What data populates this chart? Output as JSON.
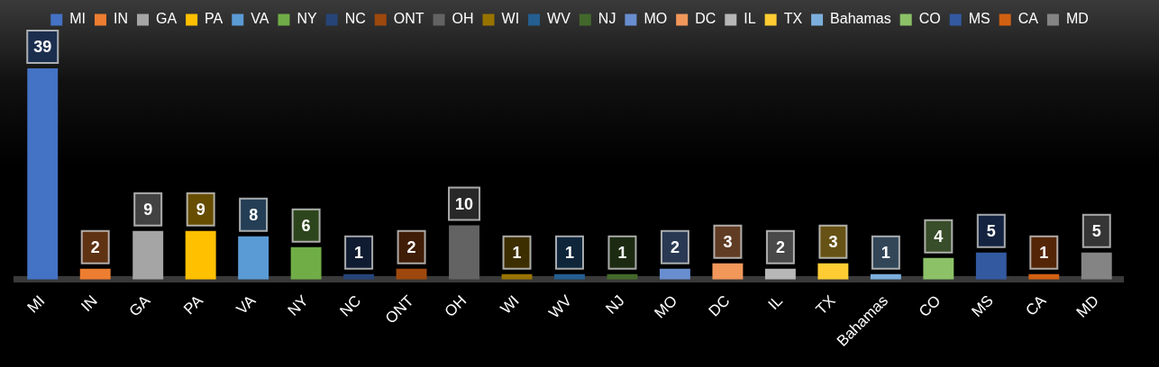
{
  "chart_data": {
    "type": "bar",
    "categories": [
      "MI",
      "IN",
      "GA",
      "PA",
      "VA",
      "NY",
      "NC",
      "ONT",
      "OH",
      "WI",
      "WV",
      "NJ",
      "MO",
      "DC",
      "IL",
      "TX",
      "Bahamas",
      "CO",
      "MS",
      "CA",
      "MD"
    ],
    "series": [
      {
        "name": "MI",
        "color": "#4472c4",
        "values": [
          39,
          null,
          null,
          null,
          null,
          null,
          null,
          null,
          null,
          null,
          null,
          null,
          null,
          null,
          null,
          null,
          null,
          null,
          null,
          null,
          null
        ]
      },
      {
        "name": "IN",
        "color": "#ed7d31",
        "values": [
          null,
          2,
          null,
          null,
          null,
          null,
          null,
          null,
          null,
          null,
          null,
          null,
          null,
          null,
          null,
          null,
          null,
          null,
          null,
          null,
          null
        ]
      },
      {
        "name": "GA",
        "color": "#a5a5a5",
        "values": [
          null,
          null,
          9,
          null,
          null,
          null,
          null,
          null,
          null,
          null,
          null,
          null,
          null,
          null,
          null,
          null,
          null,
          null,
          null,
          null,
          null
        ]
      },
      {
        "name": "PA",
        "color": "#ffc000",
        "values": [
          null,
          null,
          null,
          9,
          null,
          null,
          null,
          null,
          null,
          null,
          null,
          null,
          null,
          null,
          null,
          null,
          null,
          null,
          null,
          null,
          null
        ]
      },
      {
        "name": "VA",
        "color": "#5b9bd5",
        "values": [
          null,
          null,
          null,
          null,
          8,
          null,
          null,
          null,
          null,
          null,
          null,
          null,
          null,
          null,
          null,
          null,
          null,
          null,
          null,
          null,
          null
        ]
      },
      {
        "name": "NY",
        "color": "#70ad47",
        "values": [
          null,
          null,
          null,
          null,
          null,
          6,
          null,
          null,
          null,
          null,
          null,
          null,
          null,
          null,
          null,
          null,
          null,
          null,
          null,
          null,
          null
        ]
      },
      {
        "name": "NC",
        "color": "#264478",
        "values": [
          null,
          null,
          null,
          null,
          null,
          null,
          1,
          null,
          null,
          null,
          null,
          null,
          null,
          null,
          null,
          null,
          null,
          null,
          null,
          null,
          null
        ]
      },
      {
        "name": "ONT",
        "color": "#9e480e",
        "values": [
          null,
          null,
          null,
          null,
          null,
          null,
          null,
          2,
          null,
          null,
          null,
          null,
          null,
          null,
          null,
          null,
          null,
          null,
          null,
          null,
          null
        ]
      },
      {
        "name": "OH",
        "color": "#636363",
        "values": [
          null,
          null,
          null,
          null,
          null,
          null,
          null,
          null,
          10,
          null,
          null,
          null,
          null,
          null,
          null,
          null,
          null,
          null,
          null,
          null,
          null
        ]
      },
      {
        "name": "WI",
        "color": "#997300",
        "values": [
          null,
          null,
          null,
          null,
          null,
          null,
          null,
          null,
          null,
          1,
          null,
          null,
          null,
          null,
          null,
          null,
          null,
          null,
          null,
          null,
          null
        ]
      },
      {
        "name": "WV",
        "color": "#255e91",
        "values": [
          null,
          null,
          null,
          null,
          null,
          null,
          null,
          null,
          null,
          null,
          1,
          null,
          null,
          null,
          null,
          null,
          null,
          null,
          null,
          null,
          null
        ]
      },
      {
        "name": "NJ",
        "color": "#43682b",
        "values": [
          null,
          null,
          null,
          null,
          null,
          null,
          null,
          null,
          null,
          null,
          null,
          1,
          null,
          null,
          null,
          null,
          null,
          null,
          null,
          null,
          null
        ]
      },
      {
        "name": "MO",
        "color": "#698ed0",
        "values": [
          null,
          null,
          null,
          null,
          null,
          null,
          null,
          null,
          null,
          null,
          null,
          null,
          2,
          null,
          null,
          null,
          null,
          null,
          null,
          null,
          null
        ]
      },
      {
        "name": "DC",
        "color": "#f1975a",
        "values": [
          null,
          null,
          null,
          null,
          null,
          null,
          null,
          null,
          null,
          null,
          null,
          null,
          null,
          3,
          null,
          null,
          null,
          null,
          null,
          null,
          null
        ]
      },
      {
        "name": "IL",
        "color": "#b7b7b7",
        "values": [
          null,
          null,
          null,
          null,
          null,
          null,
          null,
          null,
          null,
          null,
          null,
          null,
          null,
          null,
          2,
          null,
          null,
          null,
          null,
          null,
          null
        ]
      },
      {
        "name": "TX",
        "color": "#ffcd33",
        "values": [
          null,
          null,
          null,
          null,
          null,
          null,
          null,
          null,
          null,
          null,
          null,
          null,
          null,
          null,
          null,
          3,
          null,
          null,
          null,
          null,
          null
        ]
      },
      {
        "name": "Bahamas",
        "color": "#7cafdd",
        "values": [
          null,
          null,
          null,
          null,
          null,
          null,
          null,
          null,
          null,
          null,
          null,
          null,
          null,
          null,
          null,
          null,
          1,
          null,
          null,
          null,
          null
        ]
      },
      {
        "name": "CO",
        "color": "#8cc168",
        "values": [
          null,
          null,
          null,
          null,
          null,
          null,
          null,
          null,
          null,
          null,
          null,
          null,
          null,
          null,
          null,
          null,
          null,
          4,
          null,
          null,
          null
        ]
      },
      {
        "name": "MS",
        "color": "#335aa1",
        "values": [
          null,
          null,
          null,
          null,
          null,
          null,
          null,
          null,
          null,
          null,
          null,
          null,
          null,
          null,
          null,
          null,
          null,
          null,
          5,
          null,
          null
        ]
      },
      {
        "name": "CA",
        "color": "#d26012",
        "values": [
          null,
          null,
          null,
          null,
          null,
          null,
          null,
          null,
          null,
          null,
          null,
          null,
          null,
          null,
          null,
          null,
          null,
          null,
          null,
          1,
          null
        ]
      },
      {
        "name": "MD",
        "color": "#848484",
        "values": [
          null,
          null,
          null,
          null,
          null,
          null,
          null,
          null,
          null,
          null,
          null,
          null,
          null,
          null,
          null,
          null,
          null,
          null,
          null,
          null,
          5
        ]
      }
    ],
    "legend": "top",
    "data_labels": true
  }
}
